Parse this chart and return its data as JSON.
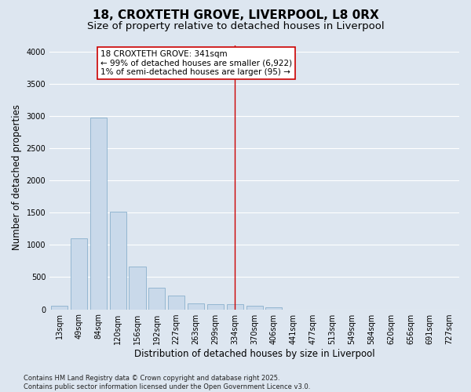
{
  "title1": "18, CROXTETH GROVE, LIVERPOOL, L8 0RX",
  "title2": "Size of property relative to detached houses in Liverpool",
  "xlabel": "Distribution of detached houses by size in Liverpool",
  "ylabel": "Number of detached properties",
  "categories": [
    "13sqm",
    "49sqm",
    "84sqm",
    "120sqm",
    "156sqm",
    "192sqm",
    "227sqm",
    "263sqm",
    "299sqm",
    "334sqm",
    "370sqm",
    "406sqm",
    "441sqm",
    "477sqm",
    "513sqm",
    "549sqm",
    "584sqm",
    "620sqm",
    "656sqm",
    "691sqm",
    "727sqm"
  ],
  "values": [
    50,
    1100,
    2970,
    1520,
    660,
    340,
    215,
    90,
    85,
    85,
    50,
    30,
    0,
    0,
    0,
    0,
    0,
    0,
    0,
    0,
    0
  ],
  "bar_color": "#c9d9ea",
  "bar_edge_color": "#8ab0cc",
  "vline_index": 9,
  "vline_color": "#cc0000",
  "annotation_text": "18 CROXTETH GROVE: 341sqm\n← 99% of detached houses are smaller (6,922)\n1% of semi-detached houses are larger (95) →",
  "annotation_box_color": "#ffffff",
  "annotation_box_edge": "#cc0000",
  "ylim": [
    0,
    4100
  ],
  "yticks": [
    0,
    500,
    1000,
    1500,
    2000,
    2500,
    3000,
    3500,
    4000
  ],
  "background_color": "#dde6f0",
  "grid_color": "#ffffff",
  "footnote": "Contains HM Land Registry data © Crown copyright and database right 2025.\nContains public sector information licensed under the Open Government Licence v3.0.",
  "title_fontsize": 11,
  "subtitle_fontsize": 9.5,
  "tick_fontsize": 7,
  "label_fontsize": 8.5,
  "annot_fontsize": 7.5,
  "footnote_fontsize": 6
}
